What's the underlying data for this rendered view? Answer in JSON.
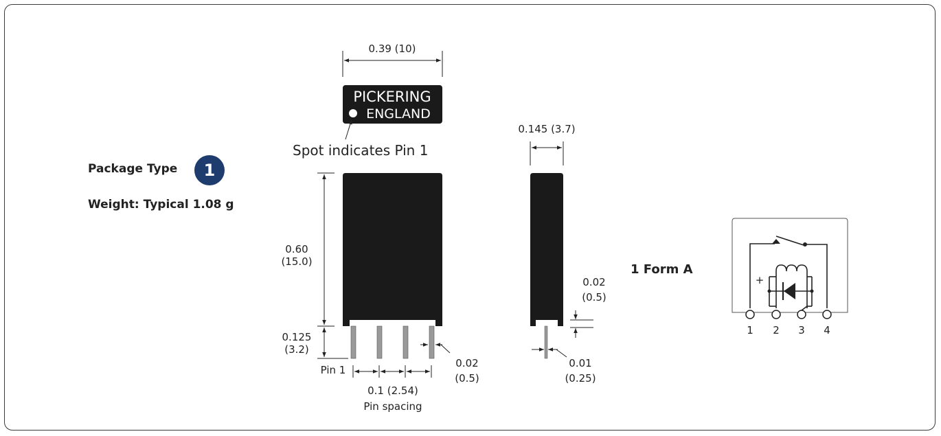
{
  "package": {
    "label": "Package Type",
    "badge": "1",
    "weight": "Weight: Typical 1.08 g"
  },
  "front_view": {
    "top_width": "0.39 (10)",
    "brand_line1": "PICKERING",
    "brand_line2": "ENGLAND",
    "spot_note": "Spot indicates Pin 1",
    "height_in": "0.60",
    "height_mm": "(15.0)",
    "pin_len_in": "0.125",
    "pin_len_mm": "(3.2)",
    "pin1": "Pin 1",
    "pin_spacing_val": "0.1 (2.54)",
    "pin_spacing_label": "Pin spacing",
    "pin_w_in": "0.02",
    "pin_w_mm": "(0.5)"
  },
  "side_view": {
    "depth": "0.145 (3.7)",
    "standoff_in": "0.02",
    "standoff_mm": "(0.5)",
    "pin_thk_in": "0.01",
    "pin_thk_mm": "(0.25)"
  },
  "schematic": {
    "form": "1 Form A",
    "plus": "+",
    "pins": [
      "1",
      "2",
      "3",
      "4"
    ]
  },
  "colors": {
    "body": "#1a1a1a",
    "badge": "#1f3c6e",
    "pin": "#9a9a9a"
  }
}
